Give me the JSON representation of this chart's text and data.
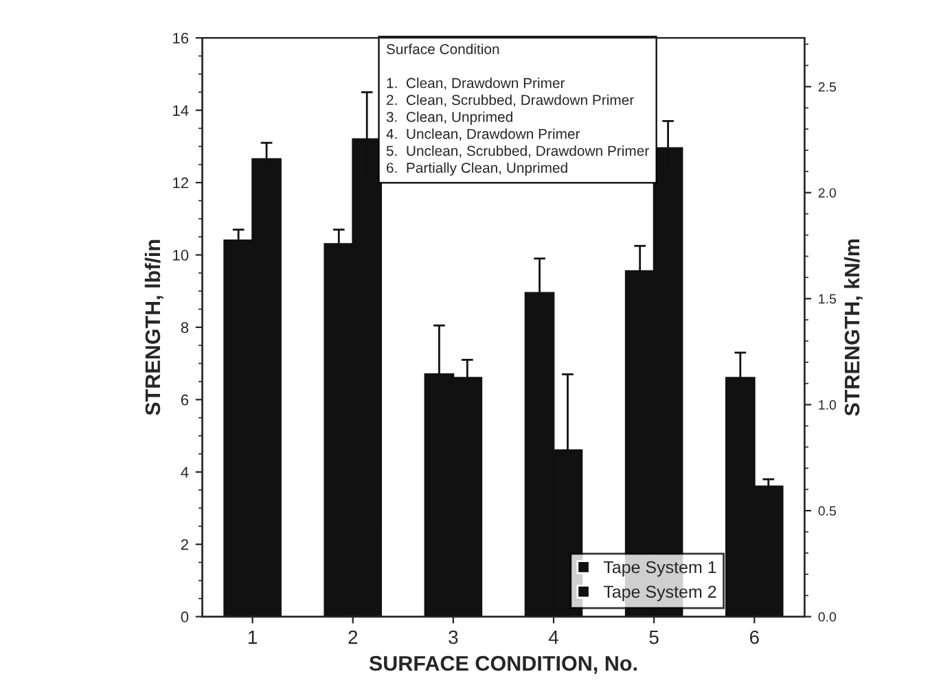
{
  "chart_data": {
    "type": "bar",
    "xlabel": "SURFACE CONDITION, No.",
    "ylabel": "STRENGTH, lbf/in",
    "y2label": "STRENGTH, kN/m",
    "categories": [
      "1",
      "2",
      "3",
      "4",
      "5",
      "6"
    ],
    "series": [
      {
        "name": "Tape System 1",
        "color": "#111111",
        "values": [
          10.4,
          10.3,
          6.7,
          8.95,
          9.55,
          6.6
        ],
        "errors": [
          0.3,
          0.4,
          1.35,
          0.95,
          0.7,
          0.7
        ]
      },
      {
        "name": "Tape System 2",
        "color": "#111111",
        "values": [
          12.65,
          13.2,
          6.6,
          4.6,
          12.95,
          3.6
        ],
        "errors": [
          0.45,
          1.3,
          0.5,
          2.1,
          0.75,
          0.2
        ]
      }
    ],
    "ylim": [
      0,
      16
    ],
    "yticks": [
      0,
      2,
      4,
      6,
      8,
      10,
      12,
      14,
      16
    ],
    "y2lim": [
      0,
      2.73
    ],
    "y2ticks": [
      {
        "value": 0,
        "label": "0.0"
      },
      0.5,
      {
        "value": 1,
        "label": "1.0"
      },
      1.5,
      {
        "value": 2,
        "label": "2.0"
      },
      2.5
    ],
    "annotations": [
      "Surface Condition",
      "1.  Clean, Drawdown Primer",
      "2.  Clean, Scrubbed, Drawdown Primer",
      "3.  Clean, Unprimed",
      "4.  Unclean, Drawdown Primer",
      "5.  Unclean, Scrubbed, Drawdown Primer",
      "6.  Partially Clean, Unprimed"
    ],
    "legend": "bottom right",
    "grid": false
  }
}
